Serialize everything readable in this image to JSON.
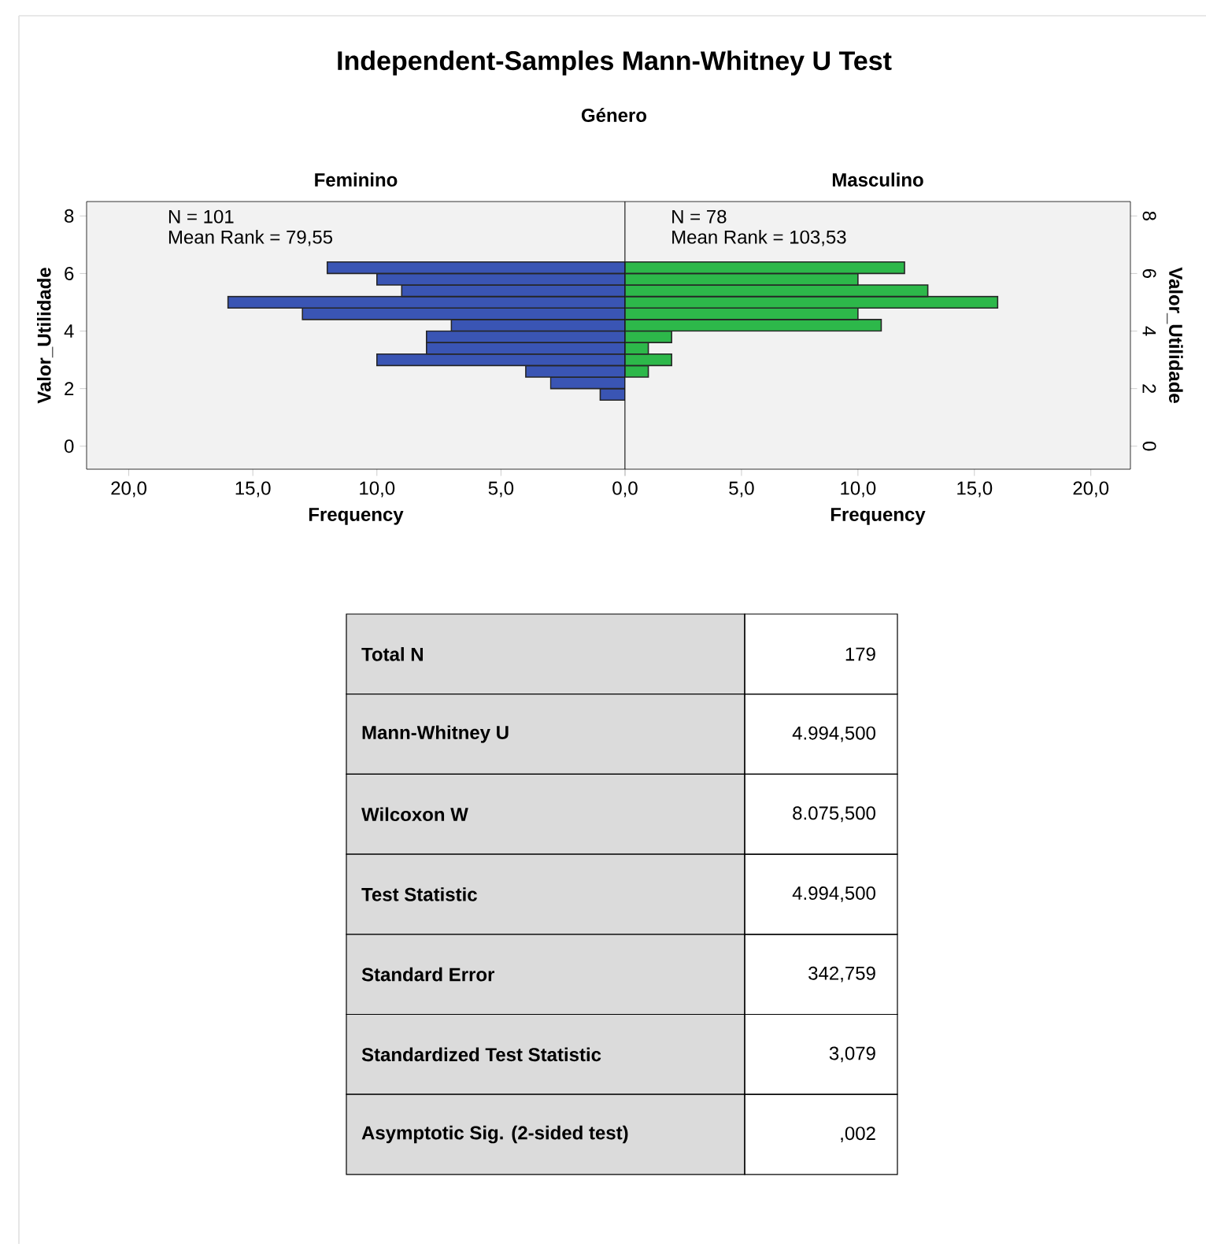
{
  "chart_data": [
    {
      "type": "other",
      "title": "Independent-Samples Mann-Whitney U Test",
      "subtitle": "Género"
    },
    {
      "type": "histogram",
      "orientation": "horizontal",
      "title": "Feminino",
      "xlabel": "Frequency",
      "ylabel": "Valor_Utilidade",
      "annotations": [
        "N = 101",
        "Mean Rank = 79,55"
      ],
      "bins": [
        1.6,
        2.0,
        2.4,
        2.8,
        3.2,
        3.6,
        4.0,
        4.4,
        4.8,
        5.2,
        5.6,
        6.0,
        6.4
      ],
      "values": [
        1,
        3,
        4,
        10,
        8,
        8,
        7,
        13,
        16,
        9,
        10,
        12
      ],
      "color": "#3a55b4",
      "xlim": [
        21.7,
        0
      ],
      "ylim": [
        -0.8,
        8.5
      ],
      "xticks": [
        {
          "value": 20,
          "label": "20,0"
        },
        {
          "value": 15,
          "label": "15,0"
        },
        {
          "value": 10,
          "label": "10,0"
        },
        {
          "value": 5,
          "label": "5,0"
        },
        {
          "value": 0,
          "label": "0,0"
        }
      ],
      "yticks": [
        0,
        2,
        4,
        6,
        8
      ]
    },
    {
      "type": "histogram",
      "orientation": "horizontal",
      "title": "Masculino",
      "xlabel": "Frequency",
      "ylabel": "Valor_Utilidade",
      "annotations": [
        "N = 78",
        "Mean Rank = 103,53"
      ],
      "bins": [
        2.4,
        2.8,
        3.2,
        3.6,
        4.0,
        4.4,
        4.8,
        5.2,
        5.6,
        6.0,
        6.4
      ],
      "values": [
        1,
        2,
        1,
        2,
        11,
        10,
        16,
        13,
        10,
        12
      ],
      "color": "#2db84a",
      "xlim": [
        0,
        21.7
      ],
      "ylim": [
        -0.8,
        8.5
      ],
      "xticks": [
        {
          "value": 0,
          "label": null
        },
        {
          "value": 5,
          "label": "5,0"
        },
        {
          "value": 10,
          "label": "10,0"
        },
        {
          "value": 15,
          "label": "15,0"
        },
        {
          "value": 20,
          "label": "20,0"
        }
      ],
      "yticks": [
        0,
        2,
        4,
        6,
        8
      ]
    },
    {
      "type": "other",
      "annotations": [
        "Total N",
        "179",
        "Mann-Whitney U",
        "4.994,500",
        "Wilcoxon W",
        "8.075,500",
        "Test Statistic",
        "4.994,500",
        "Standard Error",
        "342,759",
        "Standardized Test Statistic",
        "3,079",
        "Asymptotic Sig. (2-sided test)",
        ",002"
      ]
    }
  ]
}
